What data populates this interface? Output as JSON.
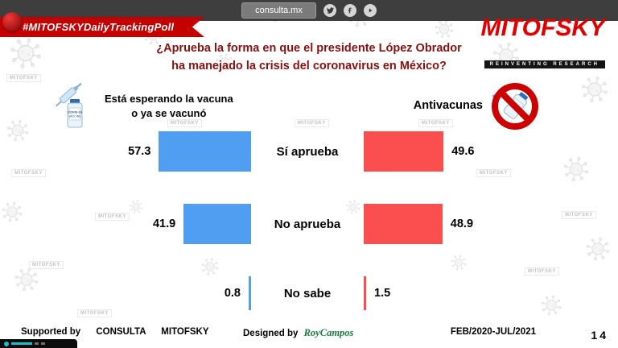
{
  "topbar": {
    "site": "consulta.mx",
    "social": [
      "twitter",
      "facebook",
      "youtube"
    ]
  },
  "ribbon": {
    "text": "#MITOFSKYDailyTrackingPoll"
  },
  "logo": {
    "name": "MITOFSKY",
    "tagline": "REINVENTING RESEARCH"
  },
  "title": {
    "line1": "¿Aprueba la forma en que el presidente López Obrador",
    "line2": "ha manejado la crisis del coronavirus en México?"
  },
  "groups": {
    "left": {
      "line1": "Está esperando la vacuna",
      "line2": "o ya se vacunó"
    },
    "right": {
      "label": "Antivacunas"
    }
  },
  "icons": {
    "vial_line1": "COVID-19",
    "vial_line2": "VACCINE"
  },
  "chart_data": {
    "type": "bar",
    "orientation": "horizontal-paired",
    "categories": [
      "Sí aprueba",
      "No aprueba",
      "No sabe"
    ],
    "series": [
      {
        "name": "Está esperando la vacuna o ya se vacunó",
        "color": "#4f9ef2",
        "values": [
          57.3,
          41.9,
          0.8
        ]
      },
      {
        "name": "Antivacunas",
        "color": "#fb4f4f",
        "values": [
          49.6,
          48.9,
          1.5
        ]
      }
    ],
    "value_format": "percent",
    "xlim": [
      0,
      100
    ],
    "grid": false,
    "legend_position": "column-headers",
    "title": "¿Aprueba la forma en que el presidente López Obrador ha manejado la crisis del coronavirus en México?"
  },
  "watermark": {
    "text": "MITOFSKY"
  },
  "colors": {
    "accent_red": "#c40000",
    "title_red": "#8a0f0f",
    "bar_blue": "#4f9ef2",
    "bar_red": "#fb4f4f",
    "designer_green": "#17803c"
  },
  "footer": {
    "supported_by": "Supported by",
    "org1": "CONSULTA",
    "org2": "MITOFSKY",
    "designed_by": "Designed by",
    "designer": "RoyCampos",
    "date_range": "FEB/2020-JUL/2021",
    "page": "14"
  }
}
